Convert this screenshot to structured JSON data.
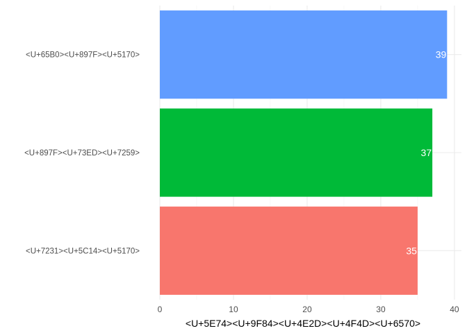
{
  "chart_data": {
    "type": "bar",
    "orientation": "horizontal",
    "categories": [
      "<U+7231><U+5C14><U+5170>",
      "<U+897F><U+73ED><U+7259>",
      "<U+65B0><U+897F><U+5170>"
    ],
    "values": [
      35,
      37,
      39
    ],
    "data_labels": [
      "35",
      "37",
      "39"
    ],
    "bar_colors": [
      "#F8766D",
      "#00BA38",
      "#619CFF"
    ],
    "xlabel": "<U+5E74><U+9F84><U+4E2D><U+4F4D><U+6570>",
    "ylabel": "",
    "xlim": [
      0,
      40.95
    ],
    "xticks": [
      0,
      10,
      20,
      30,
      40
    ],
    "xtick_labels": [
      "0",
      "10",
      "20",
      "30",
      "40"
    ],
    "grid": true,
    "legend": "none"
  }
}
